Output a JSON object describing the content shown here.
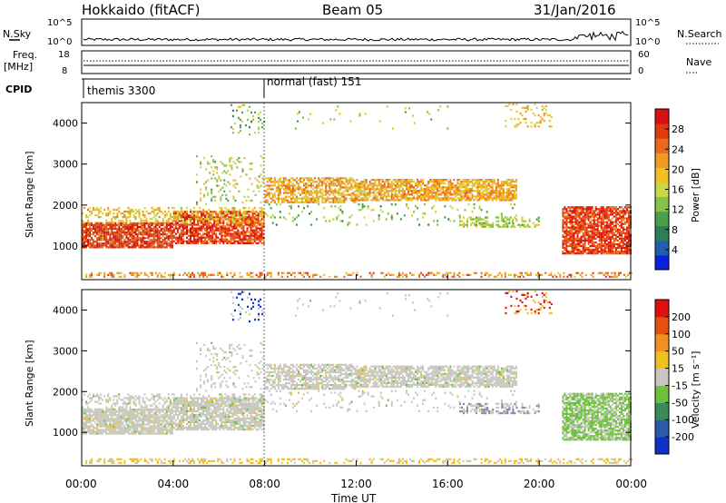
{
  "header": {
    "station": "Hokkaido (fitACF)",
    "beam": "Beam 05",
    "date": "31/Jan/2016"
  },
  "aux_panels": {
    "nsky_label": "N.Sky",
    "nsky_ticks": [
      "10^5",
      "10^0"
    ],
    "nsearch_label": "N.Search",
    "freq_label": "Freq.",
    "freq_unit": "[MHz]",
    "freq_ticks": [
      "18",
      "8"
    ],
    "nave_ticks": [
      "60",
      "0"
    ],
    "nave_label": "Nave",
    "cpid_label": "CPID",
    "cpid_modes": [
      {
        "label": "themis 3300",
        "start_hour": 0
      },
      {
        "label": "normal (fast) 151",
        "start_hour": 8
      }
    ]
  },
  "chart_data": [
    {
      "type": "heatmap",
      "title": "Power",
      "ylabel": "Slant Range [km]",
      "xlabel": "Time UT",
      "xlim": [
        0,
        24
      ],
      "ylim": [
        180,
        4500
      ],
      "yticks": [
        "1000",
        "2000",
        "3000",
        "4000"
      ],
      "colorbar": {
        "label": "Power [dB]",
        "ticks": [
          "28",
          "24",
          "20",
          "16",
          "12",
          "8",
          "4"
        ],
        "colors": [
          "#0a1fe0",
          "#1f5fb0",
          "#2e7d5a",
          "#4aa04a",
          "#86c24a",
          "#c8d84a",
          "#f0c020",
          "#f09a20",
          "#e86a1a",
          "#e03a10",
          "#d81010"
        ]
      },
      "features": [
        {
          "name": "echo band early",
          "x": [
            0,
            8
          ],
          "range_km": [
            900,
            1800
          ],
          "power_db": 28
        },
        {
          "name": "ionospheric band",
          "x": [
            8,
            19
          ],
          "range_km": [
            2000,
            2700
          ],
          "power_db": 20
        },
        {
          "name": "late band",
          "x": [
            21,
            24
          ],
          "range_km": [
            800,
            2000
          ],
          "power_db": 28
        },
        {
          "name": "ground band",
          "x": [
            0,
            24
          ],
          "range_km": [
            250,
            350
          ],
          "power_db": 24
        }
      ]
    },
    {
      "type": "heatmap",
      "title": "Velocity",
      "ylabel": "Slant Range [km]",
      "xlabel": "Time UT",
      "xlim": [
        0,
        24
      ],
      "ylim": [
        180,
        4500
      ],
      "yticks": [
        "1000",
        "2000",
        "3000",
        "4000"
      ],
      "xticks": [
        "00:00",
        "04:00",
        "08:00",
        "12:00",
        "16:00",
        "20:00",
        "00:00"
      ],
      "colorbar": {
        "label": "Velocity [m s⁻¹]",
        "ticks": [
          "200",
          "100",
          "50",
          "15",
          "-15",
          "-50",
          "-100",
          "-200"
        ],
        "colors": [
          "#1030c8",
          "#2a5aa8",
          "#3a8a5a",
          "#70c040",
          "#c8c8c0",
          "#f0c020",
          "#f09020",
          "#e85010",
          "#e01010"
        ]
      }
    }
  ]
}
